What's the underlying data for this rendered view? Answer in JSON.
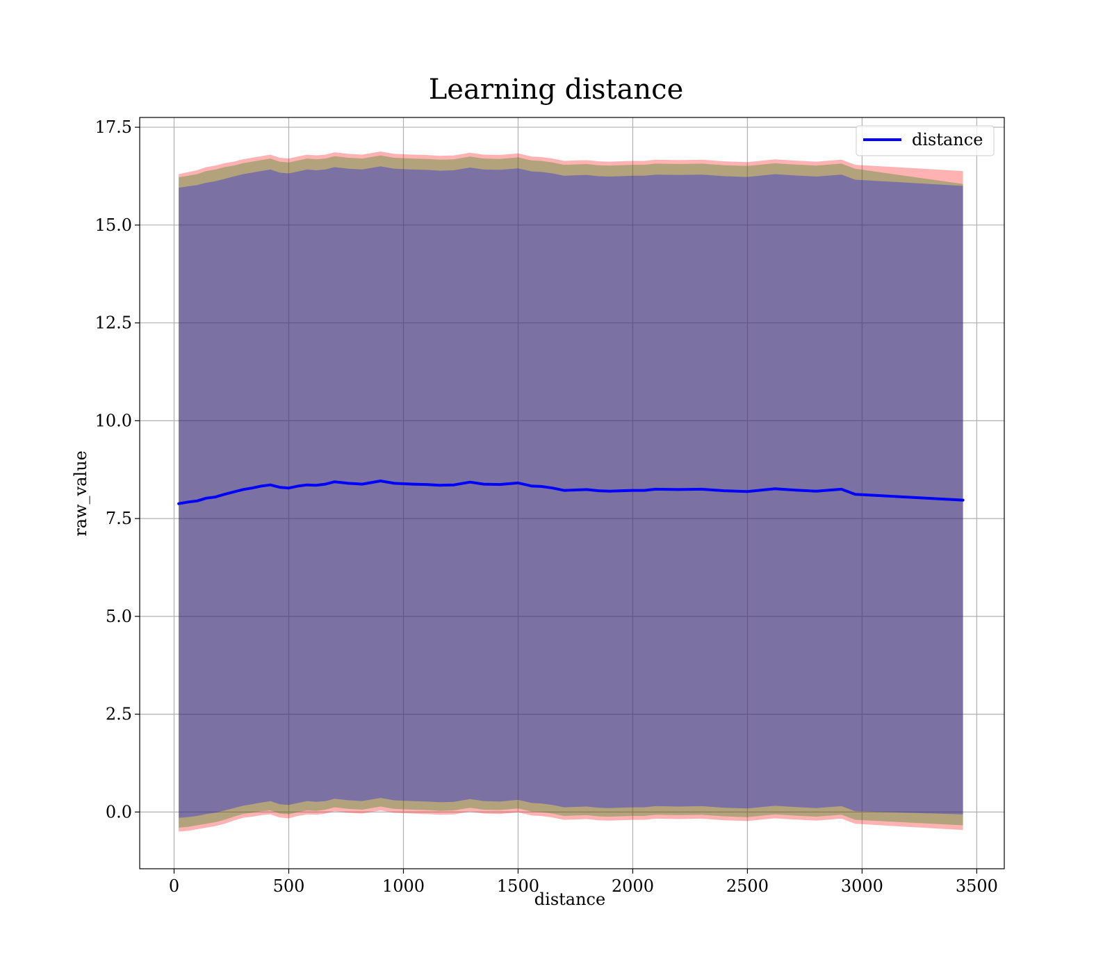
{
  "chart_data": {
    "type": "line",
    "title": "Learning distance",
    "xlabel": "distance",
    "ylabel": "raw_value",
    "xlim": [
      -150,
      3620
    ],
    "ylim": [
      -1.45,
      17.75
    ],
    "xticks": [
      0,
      500,
      1000,
      1500,
      2000,
      2500,
      3000,
      3500
    ],
    "yticks": [
      0.0,
      2.5,
      5.0,
      7.5,
      10.0,
      12.5,
      15.0,
      17.5
    ],
    "xtick_labels": [
      "0",
      "500",
      "1000",
      "1500",
      "2000",
      "2500",
      "3000",
      "3500"
    ],
    "ytick_labels": [
      "0.0",
      "2.5",
      "5.0",
      "7.5",
      "10.0",
      "12.5",
      "15.0",
      "17.5"
    ],
    "grid": true,
    "legend": {
      "position": "top-right",
      "entries": [
        "distance"
      ]
    },
    "series": [
      {
        "name": "distance",
        "color": "#0000ff",
        "x": [
          20,
          60,
          100,
          140,
          180,
          220,
          260,
          300,
          340,
          380,
          420,
          460,
          500,
          540,
          580,
          620,
          660,
          700,
          760,
          820,
          900,
          960,
          1040,
          1100,
          1160,
          1220,
          1290,
          1350,
          1420,
          1500,
          1560,
          1600,
          1650,
          1700,
          1750,
          1800,
          1850,
          1900,
          2000,
          2050,
          2100,
          2200,
          2300,
          2400,
          2500,
          2620,
          2700,
          2800,
          2910,
          2970,
          3440
        ],
        "y": [
          7.88,
          7.92,
          7.95,
          8.02,
          8.05,
          8.12,
          8.18,
          8.24,
          8.28,
          8.33,
          8.36,
          8.3,
          8.28,
          8.33,
          8.36,
          8.35,
          8.38,
          8.44,
          8.4,
          8.38,
          8.46,
          8.4,
          8.38,
          8.37,
          8.35,
          8.36,
          8.43,
          8.38,
          8.37,
          8.41,
          8.33,
          8.32,
          8.28,
          8.22,
          8.23,
          8.24,
          8.21,
          8.2,
          8.22,
          8.22,
          8.25,
          8.24,
          8.25,
          8.21,
          8.19,
          8.26,
          8.23,
          8.2,
          8.25,
          8.12,
          7.97
        ]
      }
    ],
    "bands": [
      {
        "color": "#ff0000",
        "x": [
          20,
          60,
          100,
          140,
          180,
          220,
          260,
          300,
          340,
          380,
          420,
          460,
          500,
          540,
          580,
          620,
          660,
          700,
          760,
          820,
          900,
          960,
          1040,
          1100,
          1160,
          1220,
          1290,
          1350,
          1420,
          1500,
          1560,
          1600,
          1650,
          1700,
          1750,
          1800,
          1850,
          1900,
          2000,
          2050,
          2100,
          2200,
          2300,
          2400,
          2500,
          2620,
          2700,
          2800,
          2910,
          2970,
          3440
        ],
        "upper": [
          16.3,
          16.35,
          16.4,
          16.48,
          16.52,
          16.58,
          16.62,
          16.68,
          16.72,
          16.76,
          16.8,
          16.72,
          16.7,
          16.75,
          16.8,
          16.78,
          16.8,
          16.86,
          16.82,
          16.8,
          16.88,
          16.82,
          16.8,
          16.79,
          16.77,
          16.78,
          16.85,
          16.8,
          16.79,
          16.83,
          16.75,
          16.74,
          16.7,
          16.64,
          16.65,
          16.66,
          16.63,
          16.62,
          16.64,
          16.64,
          16.67,
          16.66,
          16.67,
          16.63,
          16.61,
          16.68,
          16.65,
          16.62,
          16.67,
          16.54,
          16.38
        ],
        "lower": [
          -0.5,
          -0.48,
          -0.44,
          -0.4,
          -0.36,
          -0.3,
          -0.22,
          -0.15,
          -0.12,
          -0.08,
          -0.06,
          -0.14,
          -0.16,
          -0.1,
          -0.06,
          -0.07,
          -0.04,
          0.02,
          -0.02,
          -0.04,
          0.04,
          -0.02,
          -0.04,
          -0.05,
          -0.07,
          -0.06,
          0.01,
          -0.04,
          -0.05,
          -0.01,
          -0.09,
          -0.1,
          -0.14,
          -0.2,
          -0.19,
          -0.18,
          -0.21,
          -0.22,
          -0.2,
          -0.2,
          -0.17,
          -0.18,
          -0.17,
          -0.21,
          -0.23,
          -0.16,
          -0.19,
          -0.22,
          -0.17,
          -0.3,
          -0.46
        ]
      },
      {
        "color": "#008000",
        "x": [
          20,
          60,
          100,
          140,
          180,
          220,
          260,
          300,
          340,
          380,
          420,
          460,
          500,
          540,
          580,
          620,
          660,
          700,
          760,
          820,
          900,
          960,
          1040,
          1100,
          1160,
          1220,
          1290,
          1350,
          1420,
          1500,
          1560,
          1600,
          1650,
          1700,
          1750,
          1800,
          1850,
          1900,
          2000,
          2050,
          2100,
          2200,
          2300,
          2400,
          2500,
          2620,
          2700,
          2800,
          2910,
          2970,
          3440
        ],
        "upper": [
          16.22,
          16.26,
          16.3,
          16.38,
          16.42,
          16.48,
          16.52,
          16.58,
          16.62,
          16.66,
          16.7,
          16.62,
          16.6,
          16.65,
          16.7,
          16.68,
          16.7,
          16.76,
          16.72,
          16.7,
          16.78,
          16.72,
          16.7,
          16.69,
          16.67,
          16.68,
          16.75,
          16.7,
          16.69,
          16.73,
          16.65,
          16.64,
          16.6,
          16.54,
          16.55,
          16.56,
          16.53,
          16.52,
          16.54,
          16.54,
          16.57,
          16.56,
          16.57,
          16.53,
          16.51,
          16.58,
          16.55,
          16.52,
          16.57,
          16.44,
          16.05
        ],
        "lower": [
          -0.4,
          -0.38,
          -0.34,
          -0.3,
          -0.26,
          -0.2,
          -0.12,
          -0.05,
          -0.02,
          0.02,
          0.04,
          -0.04,
          -0.06,
          0.0,
          0.04,
          0.03,
          0.06,
          0.12,
          0.08,
          0.06,
          0.14,
          0.08,
          0.06,
          0.05,
          0.03,
          0.04,
          0.11,
          0.06,
          0.05,
          0.09,
          0.01,
          0.0,
          -0.04,
          -0.1,
          -0.09,
          -0.08,
          -0.11,
          -0.12,
          -0.1,
          -0.1,
          -0.07,
          -0.08,
          -0.07,
          -0.11,
          -0.13,
          -0.06,
          -0.09,
          -0.12,
          -0.07,
          -0.2,
          -0.34
        ]
      },
      {
        "color": "#0000ff",
        "x": [
          20,
          60,
          100,
          140,
          180,
          220,
          260,
          300,
          340,
          380,
          420,
          460,
          500,
          540,
          580,
          620,
          660,
          700,
          760,
          820,
          900,
          960,
          1040,
          1100,
          1160,
          1220,
          1290,
          1350,
          1420,
          1500,
          1560,
          1600,
          1650,
          1700,
          1750,
          1800,
          1850,
          1900,
          2000,
          2050,
          2100,
          2200,
          2300,
          2400,
          2500,
          2620,
          2700,
          2800,
          2910,
          2970,
          3440
        ],
        "upper": [
          15.95,
          15.99,
          16.02,
          16.08,
          16.12,
          16.18,
          16.24,
          16.3,
          16.34,
          16.38,
          16.42,
          16.34,
          16.32,
          16.37,
          16.42,
          16.4,
          16.42,
          16.48,
          16.44,
          16.42,
          16.5,
          16.44,
          16.42,
          16.41,
          16.39,
          16.4,
          16.47,
          16.42,
          16.41,
          16.45,
          16.37,
          16.36,
          16.32,
          16.26,
          16.27,
          16.28,
          16.25,
          16.24,
          16.26,
          16.26,
          16.29,
          16.28,
          16.29,
          16.25,
          16.23,
          16.3,
          16.27,
          16.24,
          16.29,
          16.16,
          16.0
        ],
        "lower": [
          -0.15,
          -0.13,
          -0.1,
          -0.05,
          -0.02,
          0.04,
          0.1,
          0.16,
          0.2,
          0.24,
          0.28,
          0.2,
          0.18,
          0.23,
          0.28,
          0.26,
          0.28,
          0.34,
          0.3,
          0.28,
          0.36,
          0.3,
          0.28,
          0.27,
          0.25,
          0.26,
          0.33,
          0.28,
          0.27,
          0.31,
          0.23,
          0.22,
          0.18,
          0.12,
          0.13,
          0.14,
          0.11,
          0.1,
          0.12,
          0.12,
          0.15,
          0.14,
          0.15,
          0.11,
          0.09,
          0.16,
          0.13,
          0.1,
          0.15,
          0.02,
          -0.06
        ]
      }
    ]
  }
}
